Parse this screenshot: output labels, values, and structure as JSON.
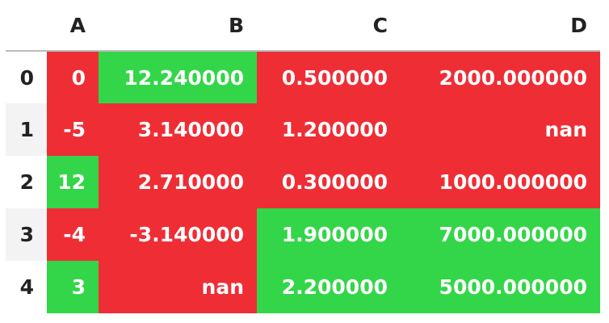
{
  "colors": {
    "low": "#ef2d35",
    "high": "#33d648",
    "header_border": "#bdbdbd"
  },
  "columns": [
    "A",
    "B",
    "C",
    "D"
  ],
  "rows": [
    {
      "index": "0",
      "cells": [
        {
          "v": "0",
          "hl": "low"
        },
        {
          "v": "12.240000",
          "hl": "high"
        },
        {
          "v": "0.500000",
          "hl": "low"
        },
        {
          "v": "2000.000000",
          "hl": "low"
        }
      ]
    },
    {
      "index": "1",
      "cells": [
        {
          "v": "-5",
          "hl": "low"
        },
        {
          "v": "3.140000",
          "hl": "low"
        },
        {
          "v": "1.200000",
          "hl": "low"
        },
        {
          "v": "nan",
          "hl": "low"
        }
      ]
    },
    {
      "index": "2",
      "cells": [
        {
          "v": "12",
          "hl": "high"
        },
        {
          "v": "2.710000",
          "hl": "low"
        },
        {
          "v": "0.300000",
          "hl": "low"
        },
        {
          "v": "1000.000000",
          "hl": "low"
        }
      ]
    },
    {
      "index": "3",
      "cells": [
        {
          "v": "-4",
          "hl": "low"
        },
        {
          "v": "-3.140000",
          "hl": "low"
        },
        {
          "v": "1.900000",
          "hl": "high"
        },
        {
          "v": "7000.000000",
          "hl": "high"
        }
      ]
    },
    {
      "index": "4",
      "cells": [
        {
          "v": "3",
          "hl": "high"
        },
        {
          "v": "nan",
          "hl": "low"
        },
        {
          "v": "2.200000",
          "hl": "high"
        },
        {
          "v": "5000.000000",
          "hl": "high"
        }
      ]
    }
  ]
}
